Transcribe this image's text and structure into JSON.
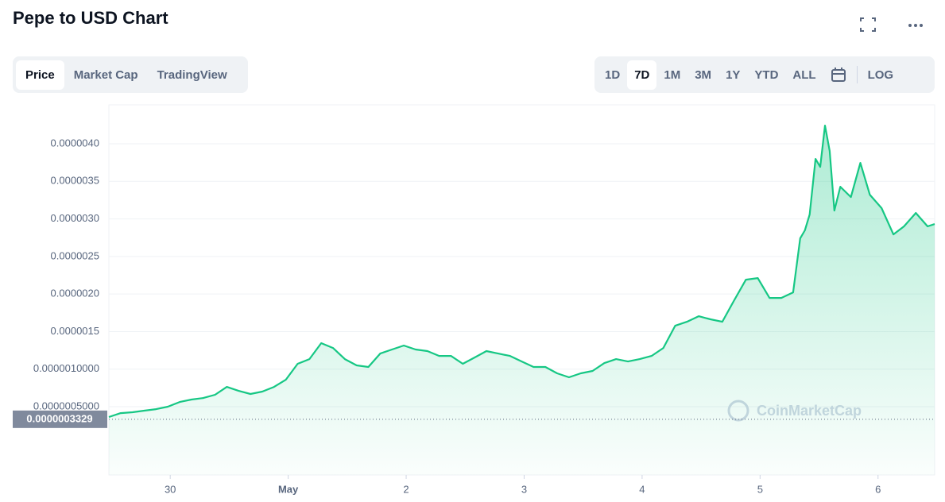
{
  "header": {
    "title": "Pepe to USD Chart"
  },
  "tabs": [
    {
      "label": "Price",
      "active": true
    },
    {
      "label": "Market Cap",
      "active": false
    },
    {
      "label": "TradingView",
      "active": false
    }
  ],
  "ranges": [
    {
      "label": "1D",
      "active": false
    },
    {
      "label": "7D",
      "active": true
    },
    {
      "label": "1M",
      "active": false
    },
    {
      "label": "3M",
      "active": false
    },
    {
      "label": "1Y",
      "active": false
    },
    {
      "label": "YTD",
      "active": false
    },
    {
      "label": "ALL",
      "active": false
    }
  ],
  "log_button": "LOG",
  "chart_data": {
    "type": "area",
    "color": "#16c784",
    "grid": true,
    "watermark": "CoinMarketCap",
    "x": [
      -0.52,
      -0.42,
      -0.32,
      -0.22,
      -0.12,
      -0.02,
      0.08,
      0.18,
      0.28,
      0.38,
      0.48,
      0.58,
      0.68,
      0.78,
      0.88,
      0.98,
      1.08,
      1.18,
      1.28,
      1.38,
      1.48,
      1.58,
      1.68,
      1.78,
      1.88,
      1.98,
      2.08,
      2.18,
      2.28,
      2.38,
      2.48,
      2.58,
      2.68,
      2.78,
      2.88,
      2.98,
      3.08,
      3.18,
      3.28,
      3.38,
      3.48,
      3.58,
      3.68,
      3.78,
      3.88,
      3.98,
      4.08,
      4.18,
      4.28,
      4.38,
      4.48,
      4.58,
      4.68,
      4.78,
      4.88,
      4.98,
      5.08,
      5.18,
      5.28,
      5.34,
      5.38,
      5.42,
      5.47,
      5.51,
      5.55,
      5.59,
      5.63,
      5.68,
      5.77,
      5.85,
      5.93,
      6.03,
      6.13,
      6.22,
      6.32,
      6.42,
      6.48
    ],
    "values": [
      3.63e-07,
      4.15e-07,
      4.26e-07,
      4.47e-07,
      4.68e-07,
      5e-07,
      5.63e-07,
      5.95e-07,
      6.16e-07,
      6.59e-07,
      7.64e-07,
      7.11e-07,
      6.69e-07,
      7.01e-07,
      7.64e-07,
      8.59e-07,
      1.071e-06,
      1.134e-06,
      1.346e-06,
      1.282e-06,
      1.134e-06,
      1.05e-06,
      1.029e-06,
      1.208e-06,
      1.261e-06,
      1.314e-06,
      1.261e-06,
      1.24e-06,
      1.176e-06,
      1.176e-06,
      1.071e-06,
      1.155e-06,
      1.24e-06,
      1.208e-06,
      1.176e-06,
      1.102e-06,
      1.029e-06,
      1.029e-06,
      9.44e-07,
      8.91e-07,
      9.44e-07,
      9.76e-07,
      1.081e-06,
      1.134e-06,
      1.102e-06,
      1.134e-06,
      1.176e-06,
      1.282e-06,
      1.578e-06,
      1.631e-06,
      1.705e-06,
      1.663e-06,
      1.631e-06,
      1.916e-06,
      2.191e-06,
      2.212e-06,
      1.948e-06,
      1.948e-06,
      2.022e-06,
      2.741e-06,
      2.847e-06,
      3.058e-06,
      3.798e-06,
      3.692e-06,
      4.242e-06,
      3.904e-06,
      3.111e-06,
      3.428e-06,
      3.29e-06,
      3.745e-06,
      3.322e-06,
      3.143e-06,
      2.794e-06,
      2.9e-06,
      3.079e-06,
      2.9e-06,
      2.931e-06
    ],
    "xlim": [
      -0.52,
      6.48
    ],
    "xticks": [
      {
        "value": 0,
        "label": "30"
      },
      {
        "value": 1,
        "label": "May"
      },
      2,
      3,
      4,
      5,
      6
    ],
    "ylim": [
      -4.09e-07,
      4.518e-06
    ],
    "yticks": [
      {
        "value": 5e-07,
        "label": "0.0000005000"
      },
      {
        "value": 1e-06,
        "label": "0.0000010000"
      },
      {
        "value": 1.5e-06,
        "label": "0.0000015"
      },
      {
        "value": 2e-06,
        "label": "0.0000020"
      },
      {
        "value": 2.5e-06,
        "label": "0.0000025"
      },
      {
        "value": 3e-06,
        "label": "0.0000030"
      },
      {
        "value": 3.5e-06,
        "label": "0.0000035"
      },
      {
        "value": 4e-06,
        "label": "0.0000040"
      }
    ],
    "reference_line": {
      "value": 3.329e-07,
      "label": "0.0000003329"
    }
  }
}
